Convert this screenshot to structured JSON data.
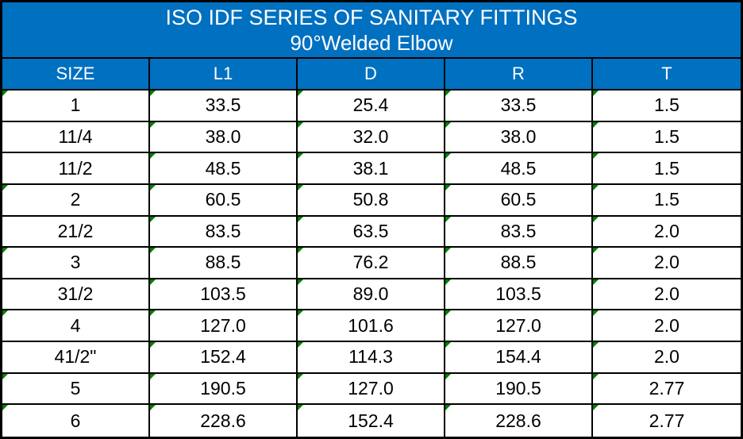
{
  "header": {
    "title_line1": "ISO IDF SERIES OF SANITARY FITTINGS",
    "title_line2": "90°Welded Elbow"
  },
  "table": {
    "columns": [
      "SIZE",
      "L1",
      "D",
      "R",
      "T"
    ],
    "rows": [
      {
        "cells": [
          "1",
          "33.5",
          "25.4",
          "33.5",
          "1.5"
        ],
        "flags": [
          true,
          true,
          true,
          true,
          true
        ]
      },
      {
        "cells": [
          "11/4",
          "38.0",
          "32.0",
          "38.0",
          "1.5"
        ],
        "flags": [
          false,
          true,
          true,
          true,
          true
        ]
      },
      {
        "cells": [
          "11/2",
          "48.5",
          "38.1",
          "48.5",
          "1.5"
        ],
        "flags": [
          false,
          true,
          true,
          true,
          true
        ]
      },
      {
        "cells": [
          "2",
          "60.5",
          "50.8",
          "60.5",
          "1.5"
        ],
        "flags": [
          true,
          true,
          true,
          true,
          true
        ]
      },
      {
        "cells": [
          "21/2",
          "83.5",
          "63.5",
          "83.5",
          "2.0"
        ],
        "flags": [
          false,
          true,
          true,
          true,
          true
        ]
      },
      {
        "cells": [
          "3",
          "88.5",
          "76.2",
          "88.5",
          "2.0"
        ],
        "flags": [
          true,
          true,
          true,
          true,
          true
        ]
      },
      {
        "cells": [
          "31/2",
          "103.5",
          "89.0",
          "103.5",
          "2.0"
        ],
        "flags": [
          false,
          true,
          true,
          true,
          true
        ]
      },
      {
        "cells": [
          "4",
          "127.0",
          "101.6",
          "127.0",
          "2.0"
        ],
        "flags": [
          true,
          true,
          true,
          true,
          true
        ]
      },
      {
        "cells": [
          "41/2\"",
          "152.4",
          "114.3",
          "154.4",
          "2.0"
        ],
        "flags": [
          false,
          true,
          true,
          true,
          true
        ]
      },
      {
        "cells": [
          "5",
          "190.5",
          "127.0",
          "190.5",
          "2.77"
        ],
        "flags": [
          true,
          true,
          true,
          true,
          true
        ]
      },
      {
        "cells": [
          "6",
          "228.6",
          "152.4",
          "228.6",
          "2.77"
        ],
        "flags": [
          true,
          true,
          true,
          true,
          true
        ]
      }
    ]
  },
  "icons": {
    "cell_flag": "green-corner-triangle"
  },
  "colors": {
    "header_blue": "#0070C0",
    "border_black": "#000000",
    "flag_green": "#008000",
    "cell_background": "#FFFFFF",
    "header_text": "#FFFFFF",
    "cell_text": "#000000"
  }
}
